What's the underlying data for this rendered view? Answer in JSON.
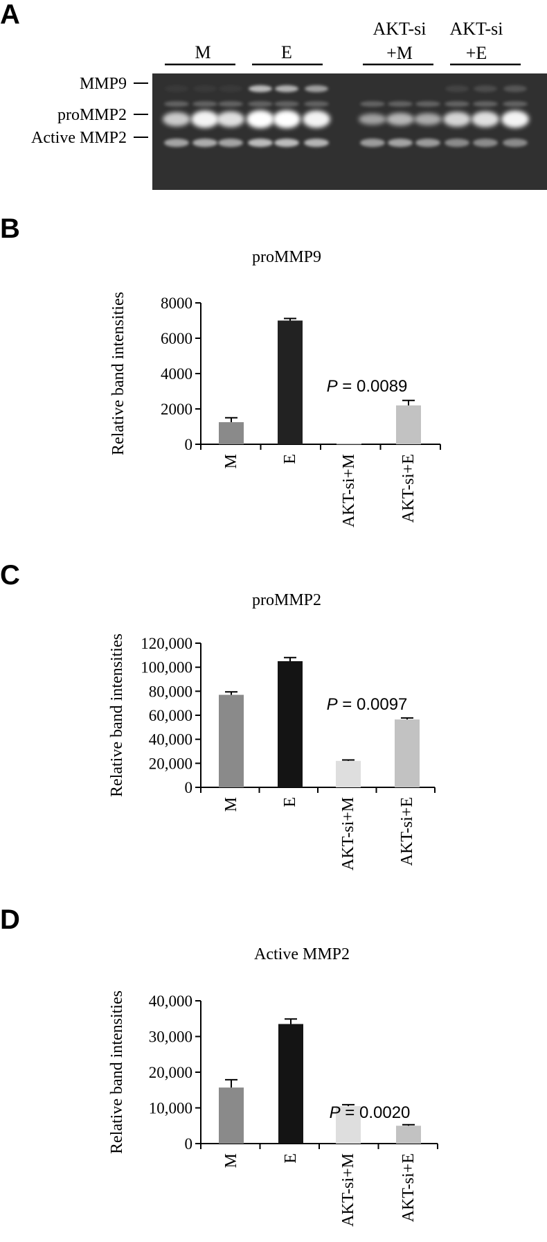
{
  "gel": {
    "panel_letter": "A",
    "groups": [
      {
        "line1": "M",
        "line2": ""
      },
      {
        "line1": "E",
        "line2": ""
      },
      {
        "line1": "AKT-si",
        "line2": "+M"
      },
      {
        "line1": "AKT-si",
        "line2": "+E"
      }
    ],
    "bands": [
      "MMP9",
      "proMMP2",
      "Active MMP2"
    ]
  },
  "chart_data": [
    {
      "panel": "B",
      "type": "bar",
      "title": "proMMP9",
      "ylabel": "Relative band intensities",
      "xlabel": "",
      "categories": [
        "M",
        "E",
        "AKT-si+M",
        "AKT-si+E"
      ],
      "values": [
        1250,
        7000,
        30,
        2200
      ],
      "errors": [
        250,
        120,
        0,
        280
      ],
      "bar_colors": [
        "#8a8a8a",
        "#222222",
        "#dedede",
        "#c2c2c2"
      ],
      "ylim": [
        0,
        8000
      ],
      "yticks": [
        "0",
        "2000",
        "4000",
        "6000",
        "8000"
      ],
      "ytick_values": [
        0,
        2000,
        4000,
        6000,
        8000
      ],
      "annotation": {
        "label": "P",
        "text": " = 0.0089",
        "category": "AKT-si+E"
      },
      "grid": false
    },
    {
      "panel": "C",
      "type": "bar",
      "title": "proMMP2",
      "ylabel": "Relative band intensities",
      "xlabel": "",
      "categories": [
        "M",
        "E",
        "AKT-si+M",
        "AKT-si+E"
      ],
      "values": [
        77000,
        105000,
        22000,
        56500
      ],
      "errors": [
        2500,
        3000,
        800,
        1300
      ],
      "bar_colors": [
        "#8a8a8a",
        "#141414",
        "#dedede",
        "#c2c2c2"
      ],
      "ylim": [
        0,
        120000
      ],
      "yticks": [
        "0",
        "20,000",
        "40,000",
        "60,000",
        "80,000",
        "100,000",
        "120,000"
      ],
      "ytick_values": [
        0,
        20000,
        40000,
        60000,
        80000,
        100000,
        120000
      ],
      "annotation": {
        "label": "P",
        "text": " = 0.0097",
        "category": "AKT-si+E"
      },
      "grid": false
    },
    {
      "panel": "D",
      "type": "bar",
      "title": "Active MMP2",
      "ylabel": "Relative band intensities",
      "xlabel": "",
      "categories": [
        "M",
        "E",
        "AKT-si+M",
        "AKT-si+E"
      ],
      "values": [
        15700,
        33500,
        10500,
        5000
      ],
      "errors": [
        2200,
        1400,
        400,
        300
      ],
      "bar_colors": [
        "#8a8a8a",
        "#141414",
        "#dedede",
        "#c2c2c2"
      ],
      "ylim": [
        0,
        40000
      ],
      "yticks": [
        "0",
        "10,000",
        "20,000",
        "30,000",
        "40,000"
      ],
      "ytick_values": [
        0,
        10000,
        20000,
        30000,
        40000
      ],
      "annotation": {
        "label": "P",
        "text": " = 0.0020",
        "category": "AKT-si+E"
      },
      "grid": false
    }
  ]
}
